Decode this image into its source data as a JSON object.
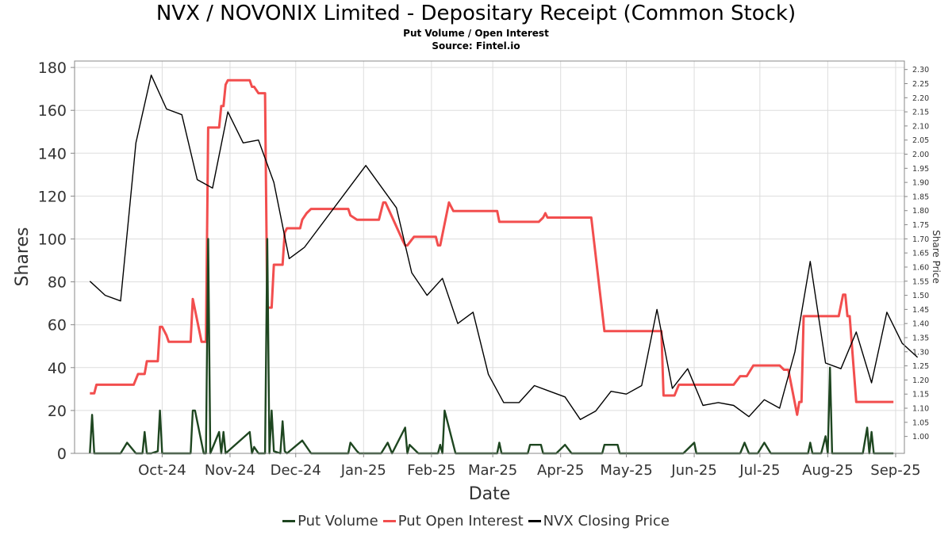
{
  "title": "NVX / NOVONIX Limited - Depositary Receipt (Common Stock)",
  "subtitle": "Put Volume / Open Interest",
  "source": "Source: Fintel.io",
  "colors": {
    "put_volume": "#1e4620",
    "put_open_interest": "#f24e4e",
    "closing_price": "#000000",
    "grid": "#dddddd"
  },
  "chart_data": {
    "type": "line",
    "xlabel": "Date",
    "ylabel": "Shares",
    "y2label": "Share Price",
    "x_tick_labels": [
      "Oct-24",
      "Nov-24",
      "Dec-24",
      "Jan-25",
      "Feb-25",
      "Mar-25",
      "Apr-25",
      "May-25",
      "Jun-25",
      "Jul-25",
      "Aug-25",
      "Sep-25"
    ],
    "x_tick_dates": [
      "2024-10-01",
      "2024-11-01",
      "2024-12-01",
      "2025-01-01",
      "2025-02-01",
      "2025-03-01",
      "2025-04-01",
      "2025-05-01",
      "2025-06-01",
      "2025-07-01",
      "2025-08-01",
      "2025-09-01"
    ],
    "xlim": [
      "2024-09-06",
      "2025-09-20"
    ],
    "ylim": [
      0,
      183
    ],
    "y_ticks": [
      0,
      20,
      40,
      60,
      80,
      100,
      120,
      140,
      160,
      180
    ],
    "y2lim": [
      0.94,
      2.33
    ],
    "y2_ticks": [
      "1.00",
      "1.05",
      "1.10",
      "1.15",
      "1.20",
      "1.25",
      "1.30",
      "1.35",
      "1.40",
      "1.45",
      "1.50",
      "1.55",
      "1.60",
      "1.65",
      "1.70",
      "1.75",
      "1.80",
      "1.85",
      "1.90",
      "1.95",
      "2.00",
      "2.05",
      "2.10",
      "2.15",
      "2.20",
      "2.25",
      "2.30"
    ],
    "grid": true,
    "legend_position": "bottom-center",
    "series": [
      {
        "name": "Put Volume",
        "axis": "left",
        "points": [
          [
            "2024-09-13",
            0
          ],
          [
            "2024-09-14",
            18
          ],
          [
            "2024-09-15",
            0
          ],
          [
            "2024-09-16",
            0
          ],
          [
            "2024-09-27",
            0
          ],
          [
            "2024-09-30",
            5
          ],
          [
            "2024-10-04",
            0
          ],
          [
            "2024-10-07",
            0
          ],
          [
            "2024-10-08",
            10
          ],
          [
            "2024-10-09",
            0
          ],
          [
            "2024-10-11",
            0
          ],
          [
            "2024-10-14",
            1
          ],
          [
            "2024-10-15",
            20
          ],
          [
            "2024-10-16",
            0
          ],
          [
            "2024-10-29",
            0
          ],
          [
            "2024-10-30",
            20
          ],
          [
            "2024-10-31",
            20
          ],
          [
            "2024-11-04",
            0
          ],
          [
            "2024-11-05",
            0
          ],
          [
            "2024-11-06",
            100
          ],
          [
            "2024-11-07",
            0
          ],
          [
            "2024-11-11",
            10
          ],
          [
            "2024-11-12",
            0
          ],
          [
            "2024-11-13",
            10
          ],
          [
            "2024-11-14",
            0
          ],
          [
            "2024-11-25",
            10
          ],
          [
            "2024-11-26",
            0
          ],
          [
            "2024-11-27",
            3
          ],
          [
            "2024-11-29",
            0
          ],
          [
            "2024-12-02",
            0
          ],
          [
            "2024-12-03",
            100
          ],
          [
            "2024-12-04",
            0
          ],
          [
            "2024-12-05",
            20
          ],
          [
            "2024-12-06",
            1
          ],
          [
            "2024-12-09",
            0
          ],
          [
            "2024-12-10",
            15
          ],
          [
            "2024-12-11",
            1
          ],
          [
            "2024-12-12",
            0
          ],
          [
            "2024-12-19",
            6
          ],
          [
            "2024-12-23",
            0
          ],
          [
            "2025-01-09",
            0
          ],
          [
            "2025-01-10",
            5
          ],
          [
            "2025-01-13",
            1
          ],
          [
            "2025-01-14",
            0
          ],
          [
            "2025-01-24",
            0
          ],
          [
            "2025-01-27",
            5
          ],
          [
            "2025-01-29",
            0
          ],
          [
            "2025-02-04",
            12
          ],
          [
            "2025-02-05",
            0
          ],
          [
            "2025-02-06",
            4
          ],
          [
            "2025-02-10",
            0
          ],
          [
            "2025-02-19",
            0
          ],
          [
            "2025-02-20",
            4
          ],
          [
            "2025-02-21",
            0
          ],
          [
            "2025-02-22",
            20
          ],
          [
            "2025-02-27",
            0
          ],
          [
            "2025-03-18",
            0
          ],
          [
            "2025-03-19",
            5
          ],
          [
            "2025-03-20",
            0
          ],
          [
            "2025-04-01",
            0
          ],
          [
            "2025-04-02",
            4
          ],
          [
            "2025-04-07",
            4
          ],
          [
            "2025-04-08",
            0
          ],
          [
            "2025-04-14",
            0
          ],
          [
            "2025-04-18",
            4
          ],
          [
            "2025-04-21",
            0
          ],
          [
            "2025-05-05",
            0
          ],
          [
            "2025-05-06",
            4
          ],
          [
            "2025-05-12",
            4
          ],
          [
            "2025-05-13",
            0
          ],
          [
            "2025-06-11",
            0
          ],
          [
            "2025-06-16",
            5
          ],
          [
            "2025-06-17",
            0
          ],
          [
            "2025-07-07",
            0
          ],
          [
            "2025-07-09",
            5
          ],
          [
            "2025-07-11",
            0
          ],
          [
            "2025-07-15",
            0
          ],
          [
            "2025-07-18",
            5
          ],
          [
            "2025-07-21",
            0
          ],
          [
            "2025-08-07",
            0
          ],
          [
            "2025-08-08",
            5
          ],
          [
            "2025-08-09",
            0
          ],
          [
            "2025-08-13",
            0
          ],
          [
            "2025-08-15",
            8
          ],
          [
            "2025-08-16",
            0
          ],
          [
            "2025-08-17",
            40
          ],
          [
            "2025-08-18",
            0
          ],
          [
            "2025-09-01",
            0
          ],
          [
            "2025-09-03",
            12
          ],
          [
            "2025-09-04",
            0
          ],
          [
            "2025-09-05",
            10
          ],
          [
            "2025-09-06",
            0
          ],
          [
            "2025-09-15",
            0
          ]
        ]
      },
      {
        "name": "Put Open Interest",
        "axis": "left",
        "points": [
          [
            "2024-09-13",
            28
          ],
          [
            "2024-09-15",
            28
          ],
          [
            "2024-09-16",
            32
          ],
          [
            "2024-10-01",
            32
          ],
          [
            "2024-10-03",
            32
          ],
          [
            "2024-10-05",
            37
          ],
          [
            "2024-10-08",
            37
          ],
          [
            "2024-10-09",
            43
          ],
          [
            "2024-10-14",
            43
          ],
          [
            "2024-10-15",
            59
          ],
          [
            "2024-10-16",
            59
          ],
          [
            "2024-10-18",
            55
          ],
          [
            "2024-10-19",
            52
          ],
          [
            "2024-10-29",
            52
          ],
          [
            "2024-10-30",
            72
          ],
          [
            "2024-11-03",
            52
          ],
          [
            "2024-11-05",
            52
          ],
          [
            "2024-11-06",
            152
          ],
          [
            "2024-11-11",
            152
          ],
          [
            "2024-11-12",
            162
          ],
          [
            "2024-11-13",
            162
          ],
          [
            "2024-11-14",
            172
          ],
          [
            "2024-11-15",
            174
          ],
          [
            "2024-11-25",
            174
          ],
          [
            "2024-11-26",
            171
          ],
          [
            "2024-11-27",
            171
          ],
          [
            "2024-11-29",
            168
          ],
          [
            "2024-12-02",
            168
          ],
          [
            "2024-12-03",
            68
          ],
          [
            "2024-12-05",
            68
          ],
          [
            "2024-12-06",
            88
          ],
          [
            "2024-12-10",
            88
          ],
          [
            "2024-12-11",
            103
          ],
          [
            "2024-12-12",
            105
          ],
          [
            "2024-12-18",
            105
          ],
          [
            "2024-12-19",
            109
          ],
          [
            "2024-12-21",
            112
          ],
          [
            "2024-12-23",
            114
          ],
          [
            "2025-01-09",
            114
          ],
          [
            "2025-01-10",
            111
          ],
          [
            "2025-01-13",
            109
          ],
          [
            "2025-01-23",
            109
          ],
          [
            "2025-01-25",
            117
          ],
          [
            "2025-01-26",
            117
          ],
          [
            "2025-02-03",
            99
          ],
          [
            "2025-02-04",
            97
          ],
          [
            "2025-02-05",
            97
          ],
          [
            "2025-02-08",
            101
          ],
          [
            "2025-02-18",
            101
          ],
          [
            "2025-02-19",
            97
          ],
          [
            "2025-02-20",
            97
          ],
          [
            "2025-02-24",
            117
          ],
          [
            "2025-02-26",
            113
          ],
          [
            "2025-03-18",
            113
          ],
          [
            "2025-03-19",
            108
          ],
          [
            "2025-04-06",
            108
          ],
          [
            "2025-04-08",
            110
          ],
          [
            "2025-04-09",
            112
          ],
          [
            "2025-04-10",
            110
          ],
          [
            "2025-04-30",
            110
          ],
          [
            "2025-05-06",
            57
          ],
          [
            "2025-06-01",
            57
          ],
          [
            "2025-06-02",
            27
          ],
          [
            "2025-06-07",
            27
          ],
          [
            "2025-06-09",
            32
          ],
          [
            "2025-07-04",
            32
          ],
          [
            "2025-07-07",
            36
          ],
          [
            "2025-07-10",
            36
          ],
          [
            "2025-07-13",
            41
          ],
          [
            "2025-07-25",
            41
          ],
          [
            "2025-07-27",
            39
          ],
          [
            "2025-07-29",
            39
          ],
          [
            "2025-08-02",
            18
          ],
          [
            "2025-08-03",
            24
          ],
          [
            "2025-08-04",
            24
          ],
          [
            "2025-08-05",
            64
          ],
          [
            "2025-08-21",
            64
          ],
          [
            "2025-08-23",
            74
          ],
          [
            "2025-08-24",
            74
          ],
          [
            "2025-08-25",
            64
          ],
          [
            "2025-08-26",
            64
          ],
          [
            "2025-08-29",
            24
          ],
          [
            "2025-09-15",
            24
          ]
        ]
      },
      {
        "name": "NVX Closing Price",
        "axis": "right",
        "points": [
          [
            "2024-09-13",
            1.55
          ],
          [
            "2024-09-20",
            1.5
          ],
          [
            "2024-09-27",
            1.48
          ],
          [
            "2024-10-04",
            2.04
          ],
          [
            "2024-10-11",
            2.28
          ],
          [
            "2024-10-18",
            2.16
          ],
          [
            "2024-10-25",
            2.14
          ],
          [
            "2024-11-01",
            1.91
          ],
          [
            "2024-11-08",
            1.88
          ],
          [
            "2024-11-15",
            2.15
          ],
          [
            "2024-11-22",
            2.04
          ],
          [
            "2024-11-29",
            2.05
          ],
          [
            "2024-12-06",
            1.9
          ],
          [
            "2024-12-13",
            1.63
          ],
          [
            "2024-12-20",
            1.67
          ],
          [
            "2025-01-17",
            1.96
          ],
          [
            "2025-01-31",
            1.81
          ],
          [
            "2025-02-07",
            1.58
          ],
          [
            "2025-02-14",
            1.5
          ],
          [
            "2025-02-21",
            1.56
          ],
          [
            "2025-02-28",
            1.4
          ],
          [
            "2025-03-07",
            1.44
          ],
          [
            "2025-03-14",
            1.22
          ],
          [
            "2025-03-21",
            1.12
          ],
          [
            "2025-03-28",
            1.12
          ],
          [
            "2025-04-04",
            1.18
          ],
          [
            "2025-04-11",
            1.16
          ],
          [
            "2025-04-18",
            1.14
          ],
          [
            "2025-04-25",
            1.06
          ],
          [
            "2025-05-02",
            1.09
          ],
          [
            "2025-05-09",
            1.16
          ],
          [
            "2025-05-16",
            1.15
          ],
          [
            "2025-05-23",
            1.18
          ],
          [
            "2025-05-30",
            1.45
          ],
          [
            "2025-06-06",
            1.17
          ],
          [
            "2025-06-13",
            1.24
          ],
          [
            "2025-06-20",
            1.11
          ],
          [
            "2025-06-27",
            1.12
          ],
          [
            "2025-07-04",
            1.11
          ],
          [
            "2025-07-11",
            1.07
          ],
          [
            "2025-07-18",
            1.13
          ],
          [
            "2025-07-25",
            1.1
          ],
          [
            "2025-08-01",
            1.3
          ],
          [
            "2025-08-08",
            1.62
          ],
          [
            "2025-08-15",
            1.26
          ],
          [
            "2025-08-22",
            1.24
          ],
          [
            "2025-08-29",
            1.37
          ],
          [
            "2025-09-05",
            1.19
          ],
          [
            "2025-09-12",
            1.44
          ],
          [
            "2025-09-19",
            1.33
          ],
          [
            "2025-09-26",
            1.28
          ]
        ]
      }
    ]
  }
}
